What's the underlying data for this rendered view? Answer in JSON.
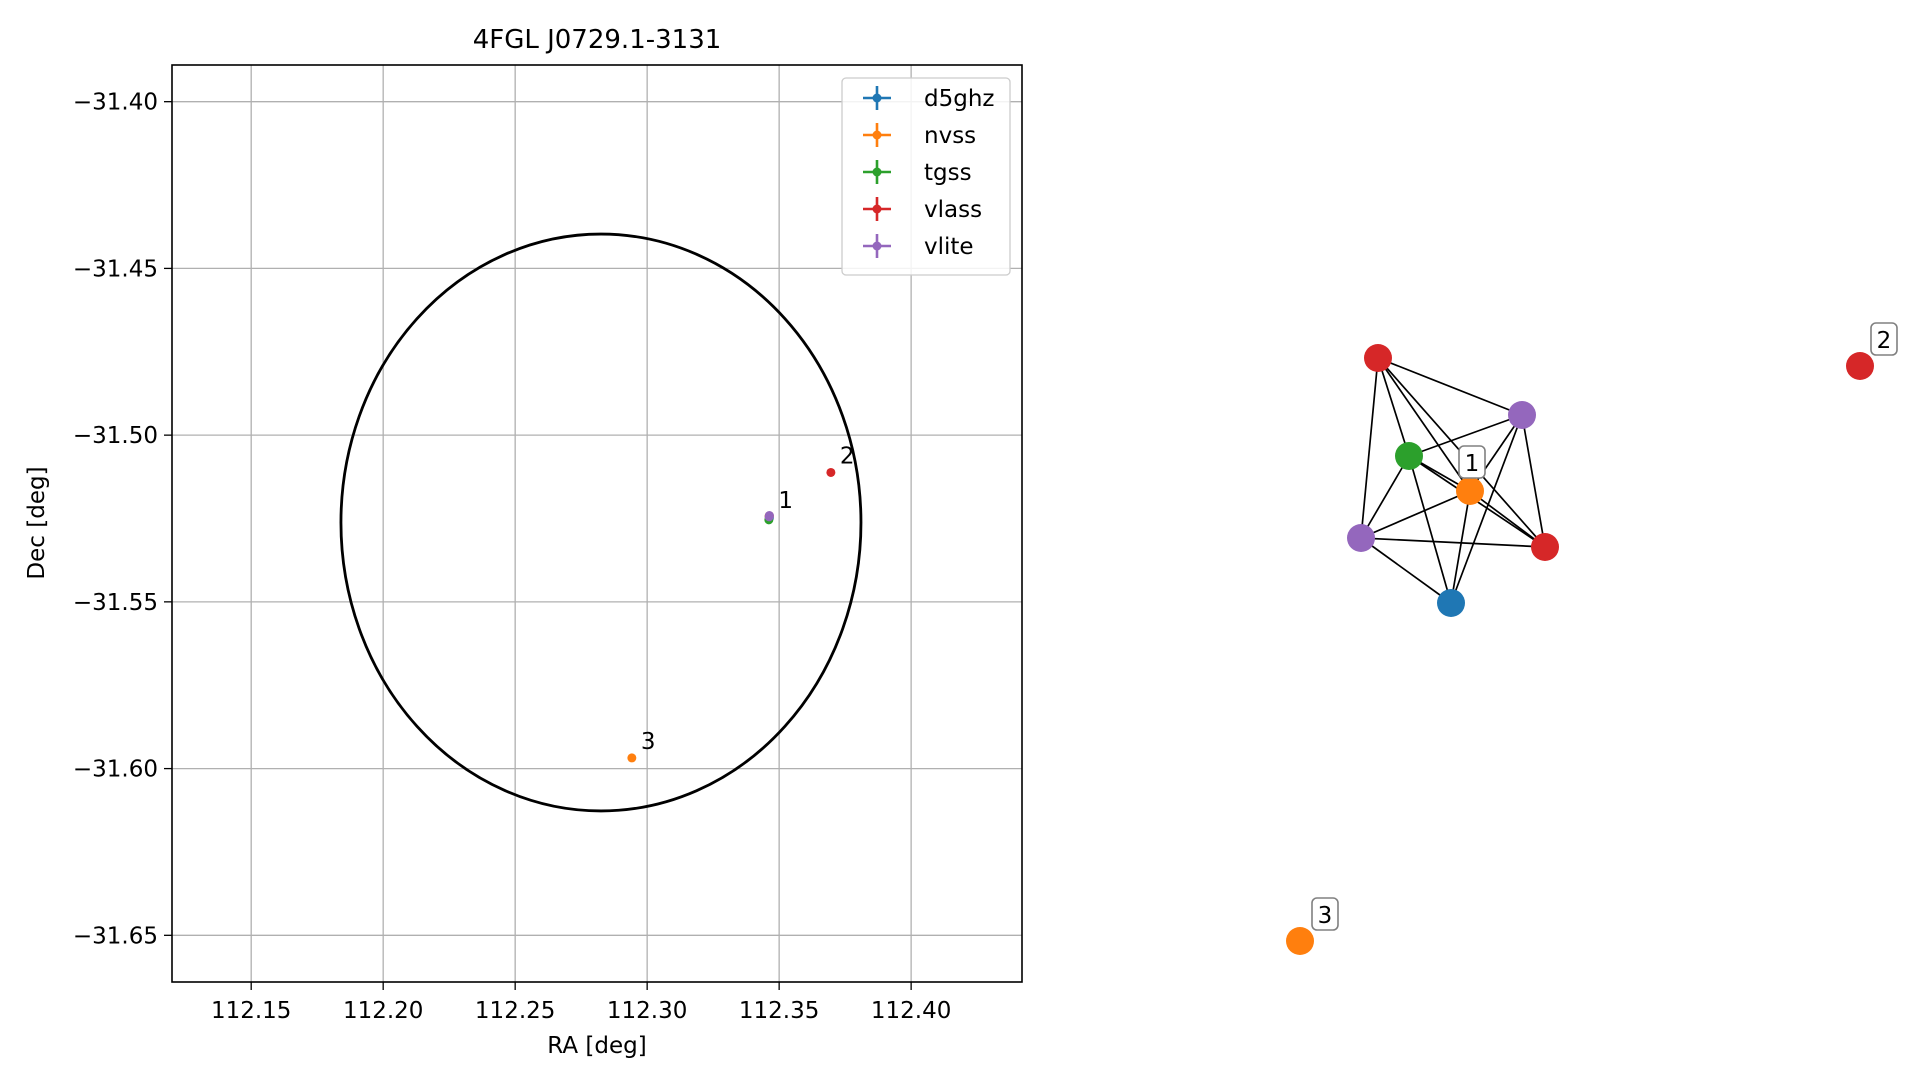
{
  "chart_data": [
    {
      "type": "scatter",
      "title": "4FGL J0729.1-3131",
      "xlabel": "RA [deg]",
      "ylabel": "Dec [deg]",
      "xlim": [
        112.12,
        112.442
      ],
      "ylim": [
        -31.664,
        -31.389
      ],
      "x_ticks": [
        112.15,
        112.2,
        112.25,
        112.3,
        112.35,
        112.4
      ],
      "x_tick_labels": [
        "112.15",
        "112.20",
        "112.25",
        "112.30",
        "112.35",
        "112.40"
      ],
      "y_ticks": [
        -31.4,
        -31.45,
        -31.5,
        -31.55,
        -31.6,
        -31.65
      ],
      "y_tick_labels": [
        "−31.40",
        "−31.45",
        "−31.50",
        "−31.55",
        "−31.60",
        "−31.65"
      ],
      "grid": true,
      "legend_position": "top-right",
      "series": [
        {
          "name": "d5ghz",
          "color": "#1f77b4",
          "points": [
            {
              "x": 112.3463,
              "y": -31.5248
            }
          ]
        },
        {
          "name": "nvss",
          "color": "#ff7f0e",
          "points": [
            {
              "x": 112.3462,
              "y": -31.5243
            },
            {
              "x": 112.2942,
              "y": -31.5968
            }
          ]
        },
        {
          "name": "tgss",
          "color": "#2ca02c",
          "points": [
            {
              "x": 112.3461,
              "y": -31.5254
            }
          ]
        },
        {
          "name": "vlass",
          "color": "#d62728",
          "points": [
            {
              "x": 112.3463,
              "y": -31.5242
            },
            {
              "x": 112.3696,
              "y": -31.5112
            }
          ]
        },
        {
          "name": "vlite",
          "color": "#9467bd",
          "points": [
            {
              "x": 112.3462,
              "y": -31.5245
            },
            {
              "x": 112.3463,
              "y": -31.5241
            }
          ]
        }
      ],
      "annotations": [
        {
          "text": "1",
          "x": 112.3463,
          "y": -31.5245
        },
        {
          "text": "2",
          "x": 112.3696,
          "y": -31.5112
        },
        {
          "text": "3",
          "x": 112.2942,
          "y": -31.5968
        }
      ],
      "ellipse": {
        "center_ra": 112.2825,
        "center_dec": -31.5262,
        "semi_ra": 0.0985,
        "semi_dec": 0.0865,
        "color": "#000000"
      }
    },
    {
      "type": "network",
      "nodes": [
        {
          "id": "vlass_a",
          "color": "#d62728"
        },
        {
          "id": "vlite_a",
          "color": "#9467bd"
        },
        {
          "id": "tgss",
          "color": "#2ca02c"
        },
        {
          "id": "nvss_1",
          "color": "#ff7f0e",
          "label": "1"
        },
        {
          "id": "vlite_b",
          "color": "#9467bd"
        },
        {
          "id": "vlass_b",
          "color": "#d62728"
        },
        {
          "id": "d5ghz",
          "color": "#1f77b4"
        },
        {
          "id": "vlass_2",
          "color": "#d62728",
          "label": "2"
        },
        {
          "id": "nvss_3",
          "color": "#ff7f0e",
          "label": "3"
        }
      ],
      "edges": [
        [
          "vlass_a",
          "vlite_a"
        ],
        [
          "vlass_a",
          "tgss"
        ],
        [
          "vlass_a",
          "nvss_1"
        ],
        [
          "vlass_a",
          "vlite_b"
        ],
        [
          "vlass_a",
          "vlass_b"
        ],
        [
          "vlite_a",
          "tgss"
        ],
        [
          "vlite_a",
          "nvss_1"
        ],
        [
          "vlite_a",
          "vlass_b"
        ],
        [
          "vlite_a",
          "d5ghz"
        ],
        [
          "tgss",
          "nvss_1"
        ],
        [
          "tgss",
          "vlass_b"
        ],
        [
          "tgss",
          "vlite_b"
        ],
        [
          "tgss",
          "d5ghz"
        ],
        [
          "nvss_1",
          "vlite_b"
        ],
        [
          "nvss_1",
          "vlass_b"
        ],
        [
          "nvss_1",
          "d5ghz"
        ],
        [
          "vlite_b",
          "vlass_b"
        ],
        [
          "vlite_b",
          "d5ghz"
        ]
      ]
    }
  ]
}
